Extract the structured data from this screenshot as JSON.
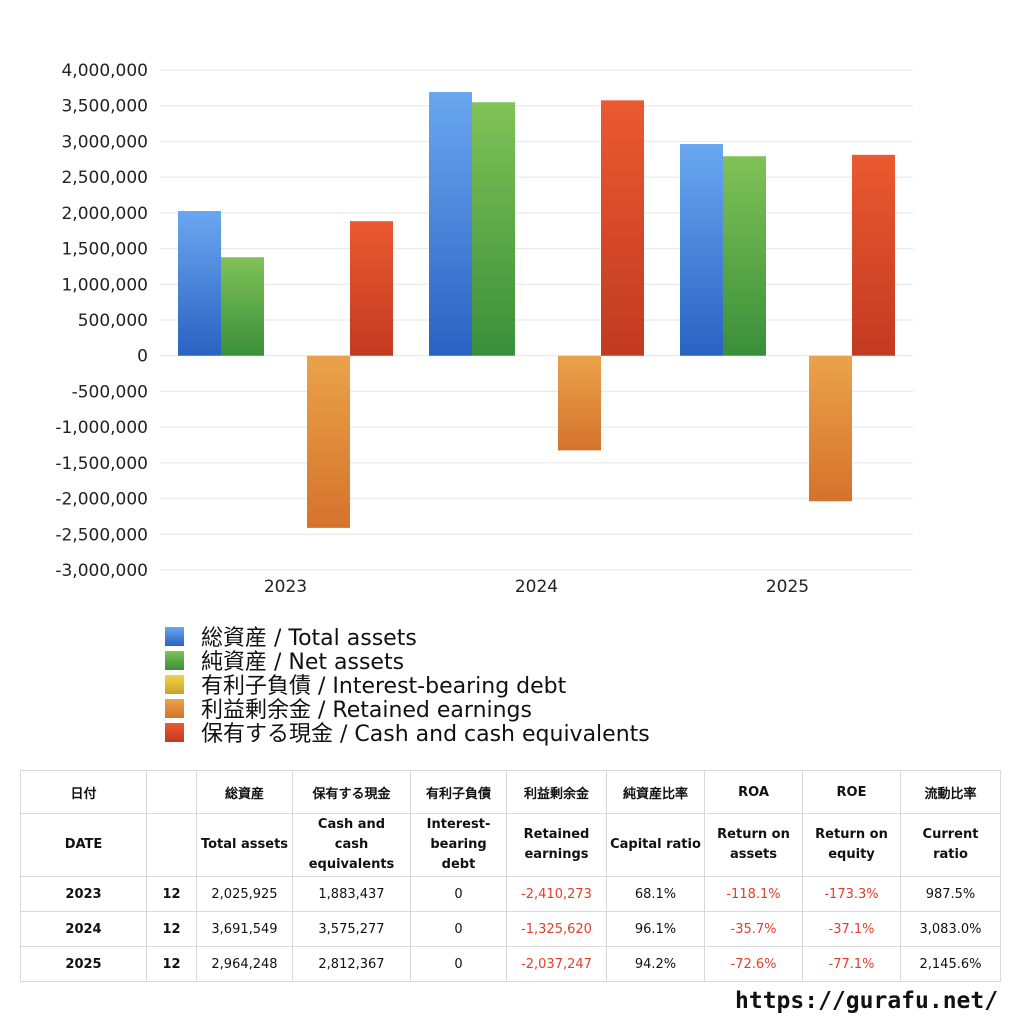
{
  "chart_data": {
    "type": "bar",
    "categories": [
      "2023",
      "2024",
      "2025"
    ],
    "ylim": [
      -3000000,
      4000000
    ],
    "yticks": [
      4000000,
      3500000,
      3000000,
      2500000,
      2000000,
      1500000,
      1000000,
      500000,
      0,
      -500000,
      -1000000,
      -1500000,
      -2000000,
      -2500000,
      -3000000
    ],
    "ytick_labels": [
      "4,000,000",
      "3,500,000",
      "3,000,000",
      "2,500,000",
      "2,000,000",
      "1,500,000",
      "1,000,000",
      "500,000",
      "0",
      "-500,000",
      "-1,000,000",
      "-1,500,000",
      "-2,000,000",
      "-2,500,000",
      "-3,000,000"
    ],
    "grid": true,
    "legend_position": "bottom",
    "series": [
      {
        "name": "総資産 / Total assets",
        "color_top": "#6aa7f0",
        "color_bottom": "#2a62c2",
        "values": [
          2025925,
          3691549,
          2964248
        ]
      },
      {
        "name": "純資産 / Net assets",
        "color_top": "#80c257",
        "color_bottom": "#3a8f3a",
        "values": [
          1379000,
          3548000,
          2793000
        ]
      },
      {
        "name": "有利子負債 / Interest-bearing debt",
        "color_top": "#f0d34a",
        "color_bottom": "#c9a22a",
        "values": [
          0,
          0,
          0
        ]
      },
      {
        "name": "利益剰余金 / Retained earnings",
        "color_top": "#eba24a",
        "color_bottom": "#d4732c",
        "values": [
          -2410273,
          -1325620,
          -2037247
        ]
      },
      {
        "name": "保有する現金 /  Cash and cash equivalents",
        "color_top": "#ea5a30",
        "color_bottom": "#c23a22",
        "values": [
          1883437,
          3575277,
          2812367
        ]
      }
    ]
  },
  "table": {
    "header_jp": [
      "日付",
      "",
      "総資産",
      "保有する現金",
      "有利子負債",
      "利益剰余金",
      "純資産比率",
      "ROA",
      "ROE",
      "流動比率"
    ],
    "header_en": [
      "DATE",
      "",
      "Total assets",
      "Cash and cash equivalents",
      "Interest-bearing debt",
      "Retained earnings",
      "Capital ratio",
      "Return on assets",
      "Return on equity",
      "Current ratio"
    ],
    "rows": [
      {
        "year": "2023",
        "month": "12",
        "total_assets": "2,025,925",
        "cash": "1,883,437",
        "debt": "0",
        "retained": "-2,410,273",
        "capital_ratio": "68.1%",
        "roa": "-118.1%",
        "roe": "-173.3%",
        "current_ratio": "987.5%"
      },
      {
        "year": "2024",
        "month": "12",
        "total_assets": "3,691,549",
        "cash": "3,575,277",
        "debt": "0",
        "retained": "-1,325,620",
        "capital_ratio": "96.1%",
        "roa": "-35.7%",
        "roe": "-37.1%",
        "current_ratio": "3,083.0%"
      },
      {
        "year": "2025",
        "month": "12",
        "total_assets": "2,964,248",
        "cash": "2,812,367",
        "debt": "0",
        "retained": "-2,037,247",
        "capital_ratio": "94.2%",
        "roa": "-72.6%",
        "roe": "-77.1%",
        "current_ratio": "2,145.6%"
      }
    ]
  },
  "site_url": "https://gurafu.net/"
}
